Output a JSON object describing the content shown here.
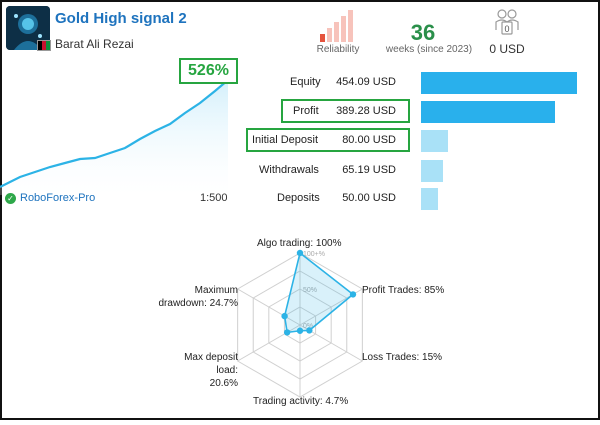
{
  "header": {
    "title": "Gold High signal 2",
    "author": "Barat Ali Rezai",
    "reliability_label": "Reliability",
    "weeks_value": "36",
    "weeks_label": "weeks (since 2023)",
    "subscribers_count": "0",
    "subscriber_price": "0 USD"
  },
  "growth": {
    "percent": "526%",
    "broker": "RoboForex-Pro",
    "leverage": "1:500"
  },
  "stats": [
    {
      "label": "Equity",
      "value": "454.09 USD",
      "amount": 454.09
    },
    {
      "label": "Profit",
      "value": "389.28 USD",
      "amount": 389.28
    },
    {
      "label": "Initial Deposit",
      "value": "80.00 USD",
      "amount": 80.0
    },
    {
      "label": "Withdrawals",
      "value": "65.19 USD",
      "amount": 65.19
    },
    {
      "label": "Deposits",
      "value": "50.00 USD",
      "amount": 50.0
    }
  ],
  "radar": {
    "labels": {
      "algo": "Algo trading: 100%",
      "profit": "Profit Trades: 85%",
      "loss": "Loss Trades: 15%",
      "activity": "Trading activity: 4.7%",
      "deposit_load_1": "Max deposit load:",
      "deposit_load_2": "20.6%",
      "drawdown_1": "Maximum",
      "drawdown_2": "drawdown: 24.7%"
    },
    "grid_labels": [
      "100+%",
      "50%",
      "0%"
    ],
    "values": [
      100,
      85,
      15,
      4.7,
      20.6,
      24.7
    ]
  },
  "colors": {
    "title": "#1e73be",
    "accent_green": "#26a540",
    "bar_dark": "#29b0ec",
    "bar_light": "#a9e1f7",
    "line": "#2cb3e6",
    "reliability_red": "#e5533d",
    "reliability_pink": "#f7c3bb"
  }
}
